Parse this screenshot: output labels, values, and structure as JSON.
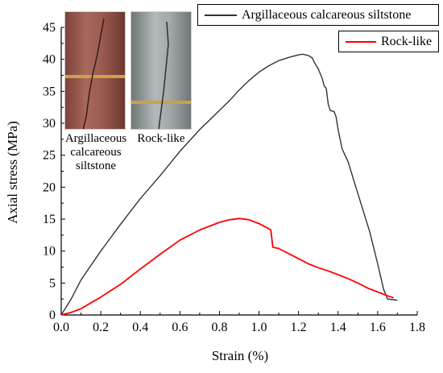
{
  "chart_data": {
    "type": "line",
    "xlabel": "Strain (%)",
    "ylabel": "Axial stress (MPa)",
    "xlim": [
      0.0,
      1.8
    ],
    "ylim": [
      0,
      45
    ],
    "x_ticks": [
      "0.0",
      "0.2",
      "0.4",
      "0.6",
      "0.8",
      "1.0",
      "1.2",
      "1.4",
      "1.6",
      "1.8"
    ],
    "y_ticks": [
      "0",
      "5",
      "10",
      "15",
      "20",
      "25",
      "30",
      "35",
      "40",
      "45"
    ],
    "grid": false,
    "legend": "top-right",
    "series": [
      {
        "name": "Argillaceous calcareous siltstone",
        "color": "#333333",
        "points": [
          [
            0,
            0
          ],
          [
            0.05,
            2.5
          ],
          [
            0.1,
            5.5
          ],
          [
            0.2,
            10
          ],
          [
            0.3,
            14.2
          ],
          [
            0.4,
            18.2
          ],
          [
            0.5,
            21.8
          ],
          [
            0.6,
            25.6
          ],
          [
            0.7,
            29
          ],
          [
            0.8,
            32
          ],
          [
            0.85,
            33.5
          ],
          [
            0.9,
            35.2
          ],
          [
            0.95,
            36.7
          ],
          [
            1.0,
            38
          ],
          [
            1.05,
            39
          ],
          [
            1.1,
            39.8
          ],
          [
            1.15,
            40.3
          ],
          [
            1.2,
            40.7
          ],
          [
            1.22,
            40.8
          ],
          [
            1.25,
            40.6
          ],
          [
            1.27,
            40.2
          ],
          [
            1.28,
            39.5
          ],
          [
            1.3,
            38.5
          ],
          [
            1.32,
            37
          ],
          [
            1.33,
            35.8
          ],
          [
            1.34,
            35.5
          ],
          [
            1.35,
            33
          ],
          [
            1.36,
            32
          ],
          [
            1.38,
            31.8
          ],
          [
            1.39,
            31
          ],
          [
            1.4,
            29
          ],
          [
            1.42,
            26
          ],
          [
            1.45,
            24
          ],
          [
            1.48,
            21
          ],
          [
            1.52,
            17
          ],
          [
            1.56,
            13
          ],
          [
            1.6,
            8
          ],
          [
            1.63,
            4
          ],
          [
            1.65,
            2.5
          ],
          [
            1.68,
            2.4
          ],
          [
            1.7,
            2.3
          ]
        ]
      },
      {
        "name": "Rock-like",
        "color": "#ff0000",
        "points": [
          [
            0,
            0
          ],
          [
            0.05,
            0.4
          ],
          [
            0.1,
            1.0
          ],
          [
            0.2,
            2.8
          ],
          [
            0.3,
            4.8
          ],
          [
            0.4,
            7.2
          ],
          [
            0.5,
            9.5
          ],
          [
            0.6,
            11.7
          ],
          [
            0.7,
            13.3
          ],
          [
            0.8,
            14.5
          ],
          [
            0.85,
            14.9
          ],
          [
            0.9,
            15.1
          ],
          [
            0.95,
            14.9
          ],
          [
            1.0,
            14.3
          ],
          [
            1.05,
            13.5
          ],
          [
            1.06,
            13.3
          ],
          [
            1.07,
            10.6
          ],
          [
            1.1,
            10.4
          ],
          [
            1.15,
            9.6
          ],
          [
            1.2,
            8.8
          ],
          [
            1.25,
            8.0
          ],
          [
            1.3,
            7.4
          ],
          [
            1.35,
            6.9
          ],
          [
            1.4,
            6.3
          ],
          [
            1.45,
            5.7
          ],
          [
            1.5,
            5.0
          ],
          [
            1.55,
            4.2
          ],
          [
            1.6,
            3.6
          ],
          [
            1.65,
            3.0
          ],
          [
            1.68,
            2.7
          ]
        ]
      }
    ]
  },
  "photos": {
    "left": {
      "caption_lines": [
        "Argillaceous",
        "calcareous",
        "siltstone"
      ],
      "color": "#9b5c52"
    },
    "right": {
      "caption_lines": [
        "Rock-like"
      ],
      "color": "#9aa0a0"
    }
  }
}
